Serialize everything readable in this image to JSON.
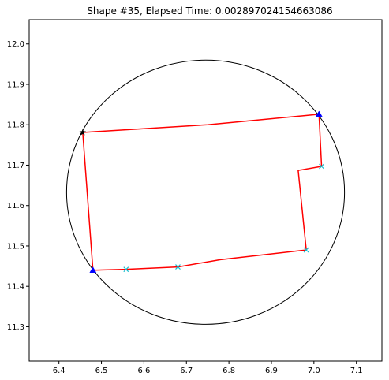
{
  "chart_data": {
    "type": "scatter",
    "title": "Shape #35, Elapsed Time: 0.002897024154663086",
    "xlabel": "",
    "ylabel": "",
    "xlim": [
      6.33,
      7.16
    ],
    "ylim": [
      11.215,
      12.06
    ],
    "x_ticks": [
      6.4,
      6.5,
      6.6,
      6.7,
      6.8,
      6.9,
      7.0,
      7.1
    ],
    "y_ticks": [
      11.3,
      11.4,
      11.5,
      11.6,
      11.7,
      11.8,
      11.9,
      12.0
    ],
    "grid": false,
    "circle": {
      "cx": 6.745,
      "cy": 11.633,
      "r": 0.327,
      "color": "#000000"
    },
    "polyline": {
      "color": "#ff0000",
      "points": [
        [
          6.456,
          11.781
        ],
        [
          6.75,
          11.8
        ],
        [
          7.012,
          11.826
        ],
        [
          7.018,
          11.697
        ],
        [
          6.963,
          11.687
        ],
        [
          6.982,
          11.49
        ],
        [
          6.78,
          11.466
        ],
        [
          6.68,
          11.448
        ],
        [
          6.558,
          11.442
        ],
        [
          6.48,
          11.44
        ],
        [
          6.456,
          11.781
        ]
      ]
    },
    "markers": [
      {
        "shape": "star",
        "color": "#000000",
        "x": 6.456,
        "y": 11.781
      },
      {
        "shape": "triangle",
        "color": "#0000ff",
        "x": 7.012,
        "y": 11.826
      },
      {
        "shape": "triangle",
        "color": "#0000ff",
        "x": 6.48,
        "y": 11.44
      },
      {
        "shape": "x",
        "color": "#17becf",
        "x": 7.018,
        "y": 11.697
      },
      {
        "shape": "x",
        "color": "#17becf",
        "x": 6.982,
        "y": 11.49
      },
      {
        "shape": "x",
        "color": "#17becf",
        "x": 6.68,
        "y": 11.448
      },
      {
        "shape": "x",
        "color": "#17becf",
        "x": 6.558,
        "y": 11.442
      }
    ]
  }
}
